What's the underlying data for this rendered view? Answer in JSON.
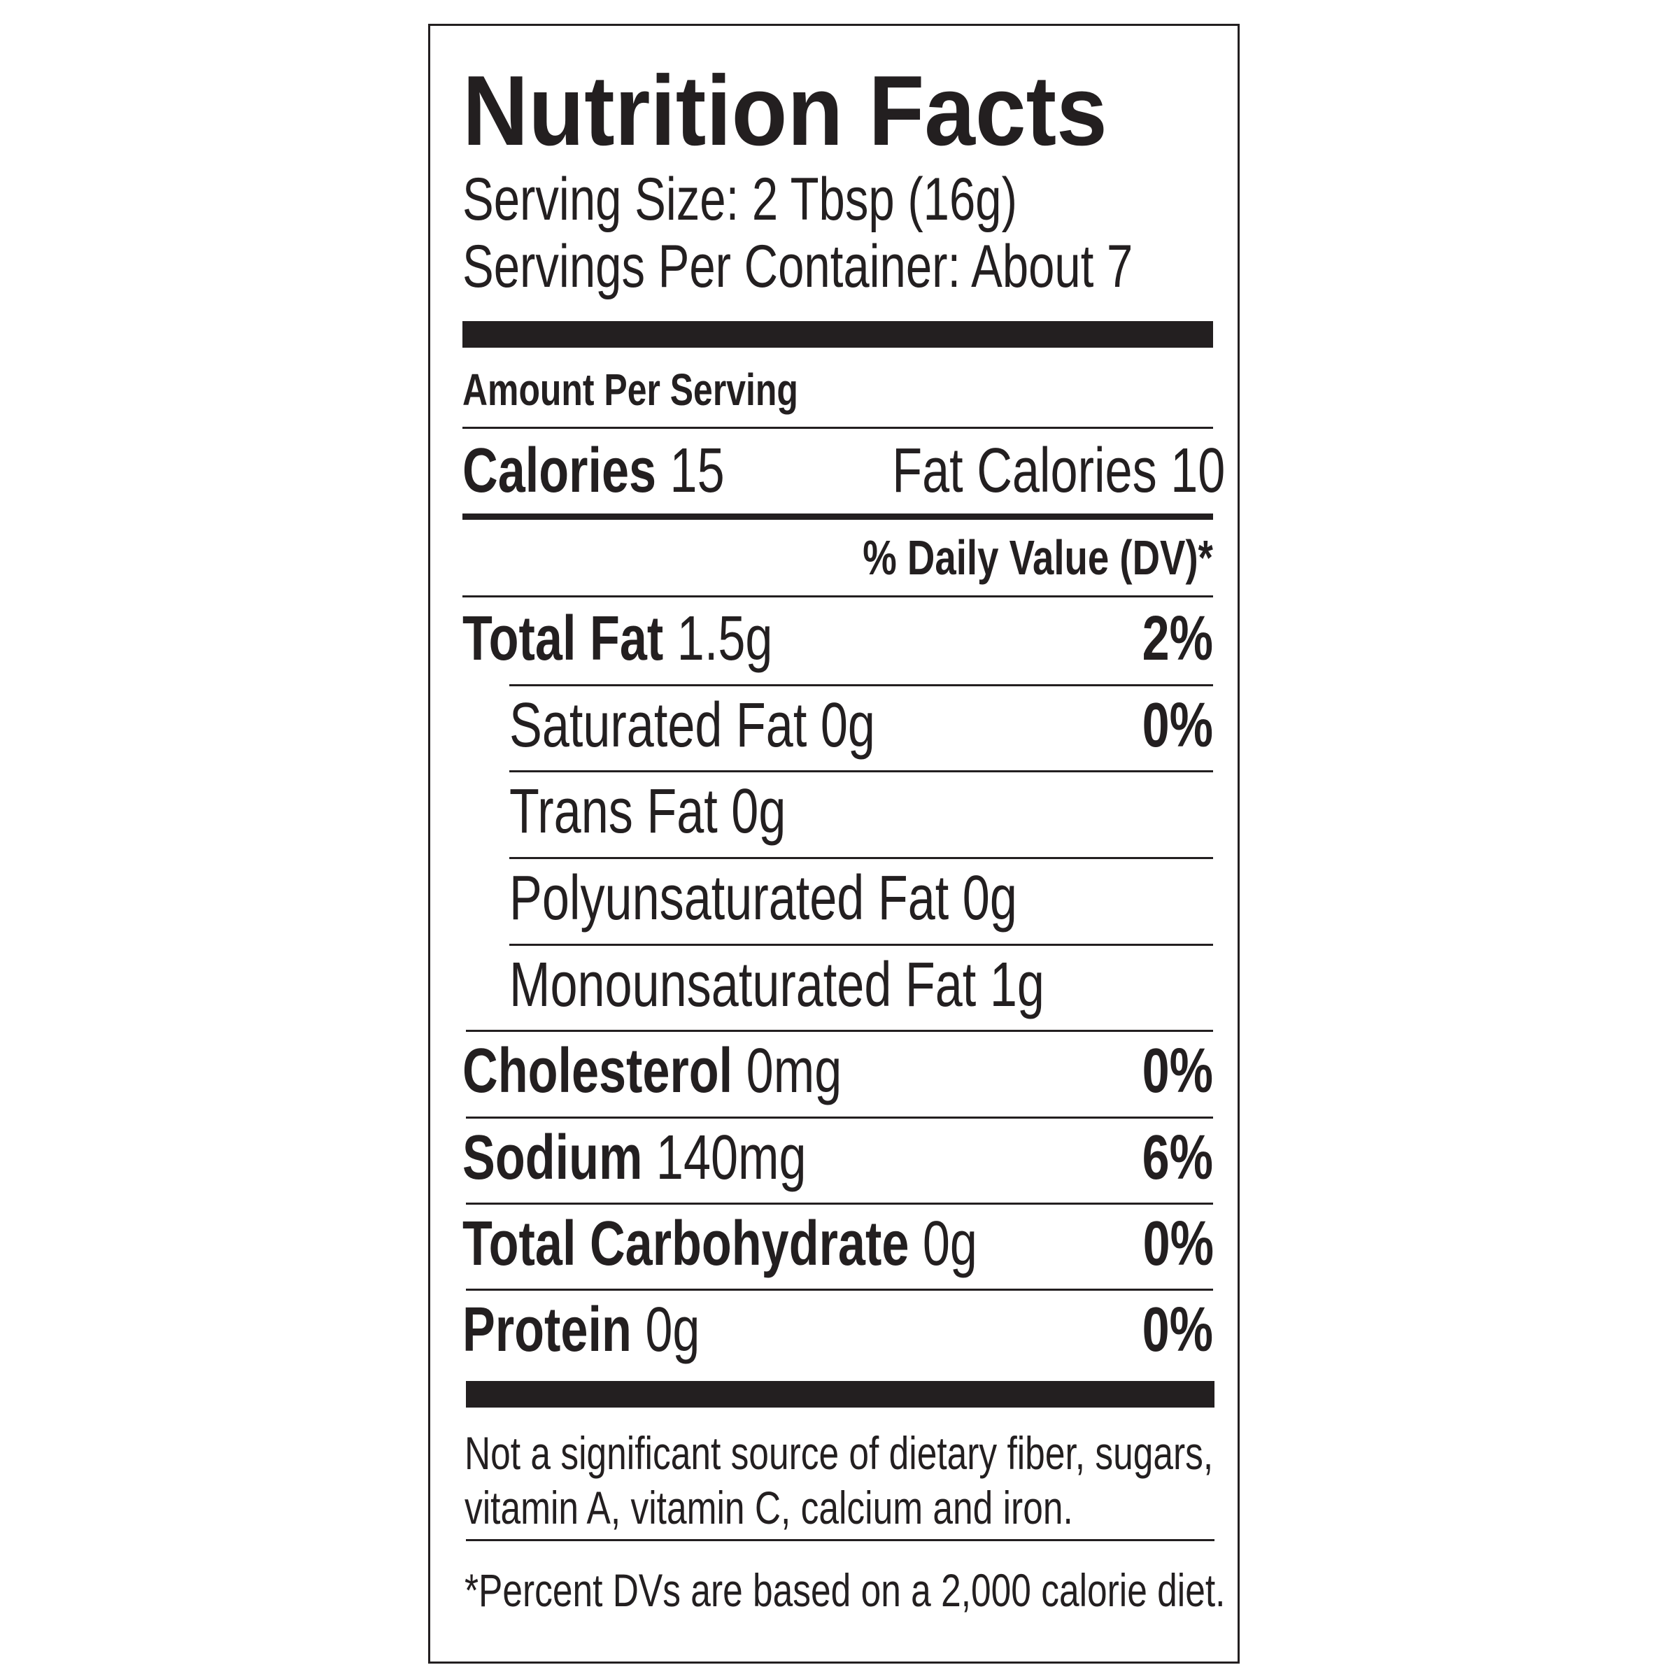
{
  "title": "Nutrition Facts",
  "serving_size": "Serving Size: 2 Tbsp (16g)",
  "servings_per_container": "Servings Per Container: About 7",
  "amount_per_serving": "Amount Per Serving",
  "calories": {
    "label": "Calories",
    "value": "15",
    "fat_calories_label": "Fat Calories",
    "fat_calories_value": "10"
  },
  "dv_header": "% Daily Value (DV)*",
  "nutrients": [
    {
      "name": "Total Fat",
      "amount": "1.5g",
      "dv": "2%",
      "bold": true
    },
    {
      "name": "Saturated Fat",
      "amount": "0g",
      "dv": "0%",
      "bold": false
    },
    {
      "name": "Trans Fat",
      "amount": "0g",
      "dv": "",
      "bold": false
    },
    {
      "name": "Polyunsaturated Fat",
      "amount": "0g",
      "dv": "",
      "bold": false
    },
    {
      "name": "Monounsaturated Fat",
      "amount": "1g",
      "dv": "",
      "bold": false
    },
    {
      "name": "Cholesterol",
      "amount": "0mg",
      "dv": "0%",
      "bold": true
    },
    {
      "name": "Sodium",
      "amount": "140mg",
      "dv": "6%",
      "bold": true
    },
    {
      "name": "Total Carbohydrate",
      "amount": "0g",
      "dv": "0%",
      "bold": true
    },
    {
      "name": "Protein",
      "amount": "0g",
      "dv": "0%",
      "bold": true
    }
  ],
  "footnote_line1": "Not a significant source of dietary fiber, sugars,",
  "footnote_line2": "vitamin A, vitamin C, calcium and iron.",
  "dv_note": "*Percent DVs are based on a 2,000 calorie diet."
}
